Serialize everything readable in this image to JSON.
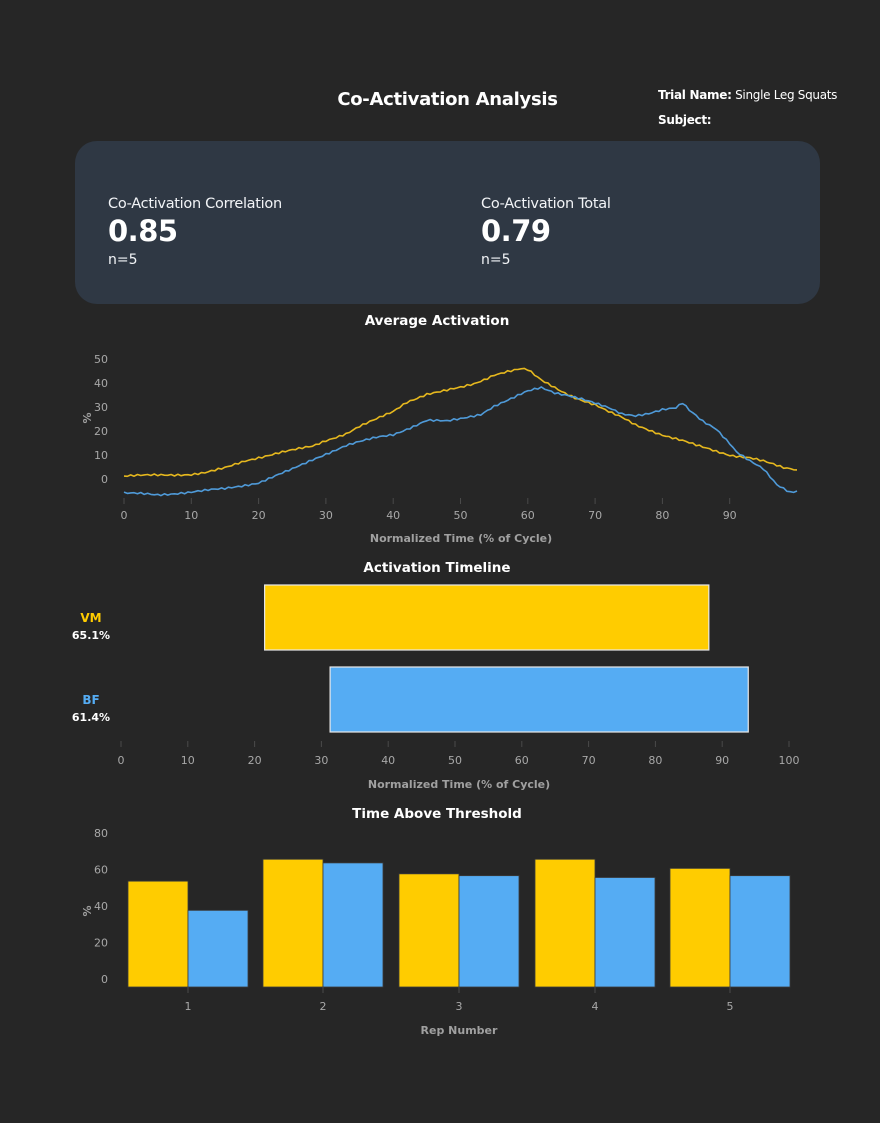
{
  "header": {
    "title": "Co-Activation Analysis",
    "trial_label": "Trial Name:",
    "trial_value": "Single Leg Squats",
    "subject_label": "Subject:",
    "subject_value": ""
  },
  "metrics": [
    {
      "label": "Co-Activation Correlation",
      "value": "0.85",
      "n": "n=5"
    },
    {
      "label": "Co-Activation Total",
      "value": "0.79",
      "n": "n=5"
    }
  ],
  "colors": {
    "vm": "#ffcc00",
    "bf": "#55acf3",
    "vm_line": "#e6b81e",
    "bf_line": "#4f9ad8"
  },
  "chart_data": [
    {
      "type": "line",
      "title": "Average Activation",
      "xlabel": "Normalized Time (% of Cycle)",
      "ylabel": "%",
      "xlim": [
        0,
        100
      ],
      "ylim": [
        -8,
        55
      ],
      "xticks": [
        0,
        10,
        20,
        30,
        40,
        50,
        60,
        70,
        80,
        90
      ],
      "yticks": [
        0,
        10,
        20,
        30,
        40,
        50
      ],
      "series": [
        {
          "name": "VM",
          "x": [
            0,
            5,
            10,
            12,
            15,
            18,
            20,
            23,
            25,
            28,
            30,
            33,
            35,
            38,
            40,
            42,
            45,
            48,
            50,
            52,
            54,
            55,
            57,
            59,
            60,
            62,
            65,
            67,
            70,
            72,
            74,
            76,
            78,
            80,
            83,
            85,
            88,
            90,
            93,
            95,
            98,
            100
          ],
          "y": [
            1.2,
            1.6,
            2.0,
            2.6,
            4.5,
            7.5,
            9.0,
            11.0,
            12.0,
            13.5,
            16.0,
            19.0,
            22.0,
            25.5,
            28.0,
            32.0,
            35.5,
            37.0,
            38.0,
            39.5,
            42.0,
            43.5,
            45.0,
            46.0,
            45.5,
            41.0,
            36.5,
            34.0,
            31.0,
            28.0,
            25.5,
            22.5,
            20.5,
            18.5,
            16.0,
            14.0,
            11.5,
            10.0,
            9.0,
            7.5,
            4.5,
            3.8
          ]
        },
        {
          "name": "BF",
          "x": [
            0,
            3,
            5,
            10,
            15,
            20,
            25,
            28,
            30,
            33,
            35,
            38,
            40,
            43,
            45,
            48,
            50,
            53,
            55,
            58,
            60,
            62,
            64,
            66,
            68,
            70,
            72,
            74,
            76,
            78,
            80,
            82,
            83,
            84,
            86,
            88,
            90,
            91,
            93,
            95,
            97,
            99,
            100
          ],
          "y": [
            -6.0,
            -6.2,
            -6.5,
            -5.5,
            -4.0,
            -1.5,
            4.0,
            8.0,
            10.5,
            14.0,
            15.5,
            17.5,
            18.5,
            22.0,
            24.5,
            24.0,
            25.0,
            27.0,
            30.5,
            34.0,
            36.5,
            38.0,
            36.0,
            35.0,
            33.5,
            31.5,
            29.5,
            27.0,
            26.5,
            27.5,
            29.0,
            29.5,
            31.5,
            28.5,
            24.0,
            21.0,
            15.0,
            11.5,
            7.5,
            4.0,
            -2.5,
            -5.5,
            -5.0
          ]
        }
      ]
    },
    {
      "type": "bar",
      "orientation": "horizontal",
      "title": "Activation Timeline",
      "xlabel": "Normalized Time (% of Cycle)",
      "xlim": [
        0,
        100
      ],
      "xticks": [
        0,
        10,
        20,
        30,
        40,
        50,
        60,
        70,
        80,
        90,
        100
      ],
      "rows": [
        {
          "name": "VM",
          "pct_label": "65.1%",
          "start": 21.5,
          "end": 88.0
        },
        {
          "name": "BF",
          "pct_label": "61.4%",
          "start": 31.3,
          "end": 93.9
        }
      ]
    },
    {
      "type": "bar",
      "title": "Time Above Threshold",
      "xlabel": "Rep Number",
      "ylabel": "%",
      "ylim": [
        0,
        80
      ],
      "yticks": [
        0,
        20,
        40,
        60,
        80
      ],
      "categories": [
        "1",
        "2",
        "3",
        "4",
        "5"
      ],
      "series": [
        {
          "name": "VM",
          "values": [
            58,
            70,
            62,
            70,
            65
          ]
        },
        {
          "name": "BF",
          "values": [
            42,
            68,
            61,
            60,
            61
          ]
        }
      ]
    }
  ]
}
